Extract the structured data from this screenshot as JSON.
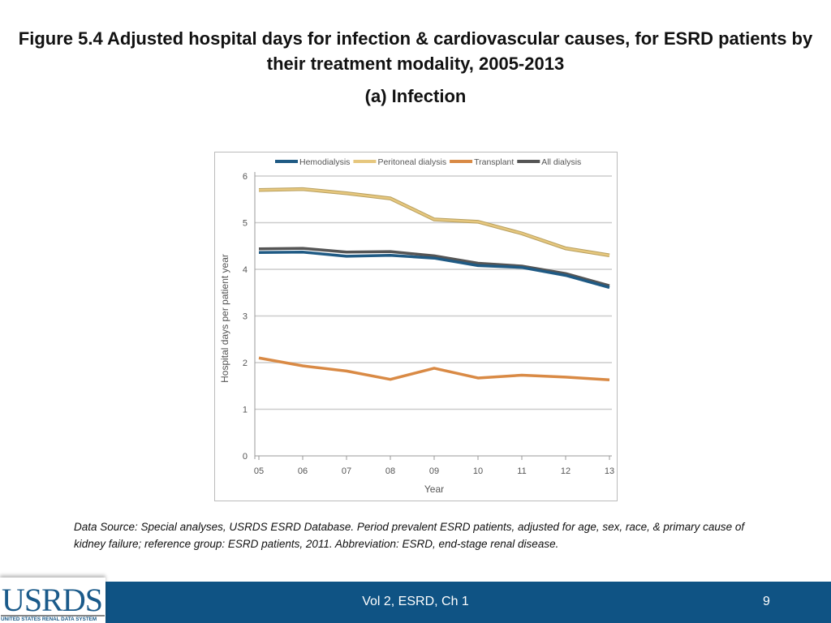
{
  "slide": {
    "title": "Figure 5.4 Adjusted hospital days for infection & cardiovascular causes, for ESRD patients by their treatment modality, 2005-2013",
    "subtitle": "(a) Infection",
    "source": "Data Source: Special analyses, USRDS ESRD Database. Period prevalent ESRD patients, adjusted for age, sex, race, & primary cause of kidney failure; reference group: ESRD patients, 2011. Abbreviation: ESRD, end-stage renal disease.",
    "footer": "Vol 2, ESRD, Ch 1",
    "page": "9",
    "logo": {
      "name": "USRDS",
      "tagline": "UNITED STATES RENAL DATA SYSTEM"
    },
    "footer_color": "#0f5384"
  },
  "chart_data": {
    "type": "line",
    "xlabel": "Year",
    "ylabel": "Hospital days per patient year",
    "x": [
      "05",
      "06",
      "07",
      "08",
      "09",
      "10",
      "11",
      "12",
      "13"
    ],
    "ylim": [
      0,
      6
    ],
    "yticks": [
      0,
      1,
      2,
      3,
      4,
      5,
      6
    ],
    "grid": true,
    "legend": "top",
    "series": [
      {
        "name": "Hemodialysis",
        "color": "#1f5a84",
        "values": [
          4.36,
          4.37,
          4.28,
          4.3,
          4.24,
          4.08,
          4.04,
          3.87,
          3.61
        ]
      },
      {
        "name": "Peritoneal dialysis",
        "color": "#e6c77e",
        "values": [
          5.7,
          5.72,
          5.63,
          5.52,
          5.07,
          5.02,
          4.77,
          4.45,
          4.3
        ]
      },
      {
        "name": "Transplant",
        "color": "#d98a45",
        "values": [
          2.1,
          1.93,
          1.82,
          1.64,
          1.88,
          1.67,
          1.73,
          1.69,
          1.63
        ]
      },
      {
        "name": "All dialysis",
        "color": "#555555",
        "values": [
          4.44,
          4.45,
          4.37,
          4.38,
          4.29,
          4.13,
          4.07,
          3.91,
          3.65
        ]
      }
    ]
  }
}
